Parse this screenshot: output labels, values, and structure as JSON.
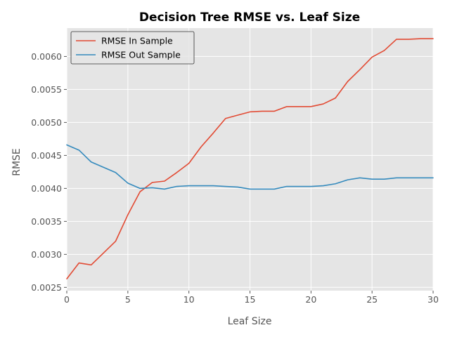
{
  "chart_data": {
    "type": "line",
    "title": "Decision Tree RMSE vs. Leaf Size",
    "xlabel": "Leaf Size",
    "ylabel": "RMSE",
    "xlim": [
      0,
      30
    ],
    "ylim": [
      0.00245,
      0.00643
    ],
    "xticks": [
      0,
      5,
      10,
      15,
      20,
      25,
      30
    ],
    "xtick_labels": [
      "0",
      "5",
      "10",
      "15",
      "20",
      "25",
      "30"
    ],
    "yticks": [
      0.0025,
      0.003,
      0.0035,
      0.004,
      0.0045,
      0.005,
      0.0055,
      0.006
    ],
    "ytick_labels": [
      "0.0025",
      "0.0030",
      "0.0035",
      "0.0040",
      "0.0045",
      "0.0050",
      "0.0055",
      "0.0060"
    ],
    "grid": true,
    "legend_position": "top-left",
    "x": [
      0,
      1,
      2,
      3,
      4,
      5,
      6,
      7,
      8,
      9,
      10,
      11,
      12,
      13,
      14,
      15,
      16,
      17,
      18,
      19,
      20,
      21,
      22,
      23,
      24,
      25,
      26,
      27,
      28,
      29,
      30
    ],
    "series": [
      {
        "name": "RMSE In Sample",
        "color": "#E24A33",
        "values": [
          0.00263,
          0.00287,
          0.00284,
          0.00302,
          0.0032,
          0.0036,
          0.00395,
          0.00409,
          0.00411,
          0.00424,
          0.00438,
          0.00463,
          0.00484,
          0.00506,
          0.00511,
          0.00516,
          0.00517,
          0.00517,
          0.00524,
          0.00524,
          0.00524,
          0.00528,
          0.00537,
          0.00562,
          0.0058,
          0.00599,
          0.00609,
          0.00626,
          0.00626,
          0.00627,
          0.00627
        ]
      },
      {
        "name": "RMSE Out Sample",
        "color": "#348ABD",
        "values": [
          0.00466,
          0.00458,
          0.0044,
          0.00432,
          0.00424,
          0.00408,
          0.004,
          0.00401,
          0.00399,
          0.00403,
          0.00404,
          0.00404,
          0.00404,
          0.00403,
          0.00402,
          0.00399,
          0.00399,
          0.00399,
          0.00403,
          0.00403,
          0.00403,
          0.00404,
          0.00407,
          0.00413,
          0.00416,
          0.00414,
          0.00414,
          0.00416,
          0.00416,
          0.00416,
          0.00416
        ]
      }
    ]
  }
}
